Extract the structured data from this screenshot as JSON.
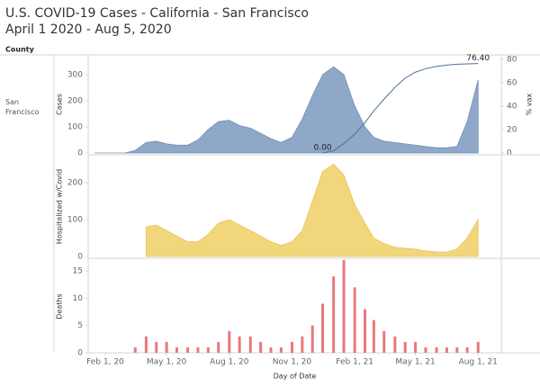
{
  "title": "U.S. COVID-19 Cases - California - San Francisco",
  "subtitle": "April 1 2020 - Aug 5, 2020",
  "row_header": "County",
  "row_label": "San Francisco",
  "chart_data": [
    {
      "type": "area",
      "ylabel": "Cases",
      "y2label": "% vax",
      "x": [
        "2020-01-16",
        "2020-02-01",
        "2020-02-16",
        "2020-03-01",
        "2020-03-16",
        "2020-04-01",
        "2020-04-16",
        "2020-05-01",
        "2020-05-16",
        "2020-06-01",
        "2020-06-16",
        "2020-07-01",
        "2020-07-16",
        "2020-08-01",
        "2020-08-16",
        "2020-09-01",
        "2020-09-16",
        "2020-10-01",
        "2020-10-16",
        "2020-11-01",
        "2020-11-16",
        "2020-12-01",
        "2020-12-16",
        "2021-01-01",
        "2021-01-16",
        "2021-02-01",
        "2021-02-16",
        "2021-03-01",
        "2021-03-16",
        "2021-04-01",
        "2021-04-16",
        "2021-05-01",
        "2021-05-16",
        "2021-06-01",
        "2021-06-16",
        "2021-07-01",
        "2021-07-16",
        "2021-08-01"
      ],
      "series": [
        {
          "name": "Cases",
          "type": "area",
          "color": "#8fa8c8",
          "line_color": "#6f8db4",
          "values": [
            0,
            0,
            0,
            0,
            10,
            40,
            45,
            35,
            30,
            30,
            50,
            90,
            120,
            125,
            105,
            95,
            75,
            55,
            40,
            60,
            130,
            220,
            300,
            330,
            300,
            180,
            100,
            60,
            45,
            40,
            35,
            30,
            25,
            20,
            20,
            25,
            120,
            280
          ]
        },
        {
          "name": "% vax",
          "type": "line",
          "axis": "y2",
          "color": "#4f6f9b",
          "values": [
            null,
            null,
            null,
            null,
            null,
            null,
            null,
            null,
            null,
            null,
            null,
            null,
            null,
            null,
            null,
            null,
            null,
            null,
            null,
            null,
            null,
            null,
            0,
            2,
            8,
            16,
            26,
            36,
            46,
            56,
            64,
            69,
            72,
            74,
            75,
            75.8,
            76.1,
            76.4
          ],
          "value_labels": [
            null,
            null,
            null,
            null,
            null,
            null,
            null,
            null,
            null,
            null,
            null,
            null,
            null,
            null,
            null,
            null,
            null,
            null,
            null,
            null,
            null,
            null,
            "0.00",
            null,
            null,
            null,
            null,
            null,
            null,
            null,
            null,
            null,
            null,
            null,
            null,
            null,
            null,
            "76.40"
          ]
        }
      ],
      "xlim": [
        "2020-01-07",
        "2021-09-04"
      ],
      "ylim": [
        0,
        372
      ],
      "yticks": [
        0,
        100,
        200,
        300
      ],
      "y2lim": [
        0,
        83
      ],
      "y2ticks": [
        0,
        20,
        40,
        60,
        80
      ]
    },
    {
      "type": "area",
      "ylabel": "Hospitalized w/Covid",
      "x": [
        "2020-01-16",
        "2020-02-01",
        "2020-02-16",
        "2020-03-01",
        "2020-03-16",
        "2020-04-01",
        "2020-04-16",
        "2020-05-01",
        "2020-05-16",
        "2020-06-01",
        "2020-06-16",
        "2020-07-01",
        "2020-07-16",
        "2020-08-01",
        "2020-08-16",
        "2020-09-01",
        "2020-09-16",
        "2020-10-01",
        "2020-10-16",
        "2020-11-01",
        "2020-11-16",
        "2020-12-01",
        "2020-12-16",
        "2021-01-01",
        "2021-01-16",
        "2021-02-01",
        "2021-02-16",
        "2021-03-01",
        "2021-03-16",
        "2021-04-01",
        "2021-04-16",
        "2021-05-01",
        "2021-05-16",
        "2021-06-01",
        "2021-06-16",
        "2021-07-01",
        "2021-07-16",
        "2021-08-01"
      ],
      "series": [
        {
          "name": "Hospitalized w/Covid",
          "type": "area",
          "color": "#f2d67c",
          "line_color": "#e8c55a",
          "values": [
            null,
            null,
            null,
            null,
            null,
            80,
            85,
            70,
            55,
            40,
            40,
            60,
            90,
            100,
            85,
            70,
            55,
            40,
            30,
            40,
            70,
            150,
            230,
            250,
            220,
            140,
            90,
            50,
            35,
            25,
            22,
            20,
            15,
            12,
            12,
            20,
            50,
            100
          ]
        }
      ],
      "xlim": [
        "2020-01-07",
        "2021-09-04"
      ],
      "ylim": [
        0,
        270
      ],
      "yticks": [
        0,
        100,
        200
      ]
    },
    {
      "type": "bar",
      "ylabel": "Deaths",
      "xlabel": "Day of Date",
      "x": [
        "2020-01-16",
        "2020-02-01",
        "2020-02-16",
        "2020-03-01",
        "2020-03-16",
        "2020-04-01",
        "2020-04-16",
        "2020-05-01",
        "2020-05-16",
        "2020-06-01",
        "2020-06-16",
        "2020-07-01",
        "2020-07-16",
        "2020-08-01",
        "2020-08-16",
        "2020-09-01",
        "2020-09-16",
        "2020-10-01",
        "2020-10-16",
        "2020-11-01",
        "2020-11-16",
        "2020-12-01",
        "2020-12-16",
        "2021-01-01",
        "2021-01-16",
        "2021-02-01",
        "2021-02-16",
        "2021-03-01",
        "2021-03-16",
        "2021-04-01",
        "2021-04-16",
        "2021-05-01",
        "2021-05-16",
        "2021-06-01",
        "2021-06-16",
        "2021-07-01",
        "2021-07-16",
        "2021-08-01"
      ],
      "series": [
        {
          "name": "Deaths",
          "type": "bar",
          "color": "#e8797b",
          "values": [
            0,
            0,
            0,
            0,
            1,
            3,
            2,
            2,
            1,
            1,
            1,
            1,
            2,
            4,
            3,
            3,
            2,
            1,
            1,
            2,
            3,
            5,
            9,
            14,
            17,
            12,
            8,
            6,
            4,
            3,
            2,
            2,
            1,
            1,
            1,
            1,
            1,
            2
          ]
        }
      ],
      "xlim": [
        "2020-01-07",
        "2021-09-04"
      ],
      "xticks": [
        {
          "value": "2020-02-01",
          "label": "Feb 1, 20"
        },
        {
          "value": "2020-05-01",
          "label": "May 1, 20"
        },
        {
          "value": "2020-08-01",
          "label": "Aug 1, 20"
        },
        {
          "value": "2020-11-01",
          "label": "Nov 1, 20"
        },
        {
          "value": "2021-02-01",
          "label": "Feb 1, 21"
        },
        {
          "value": "2021-05-01",
          "label": "May 1, 21"
        },
        {
          "value": "2021-08-01",
          "label": "Aug 1, 21"
        }
      ],
      "ylim": [
        0,
        17
      ],
      "yticks": [
        0,
        5,
        10,
        15
      ]
    }
  ]
}
